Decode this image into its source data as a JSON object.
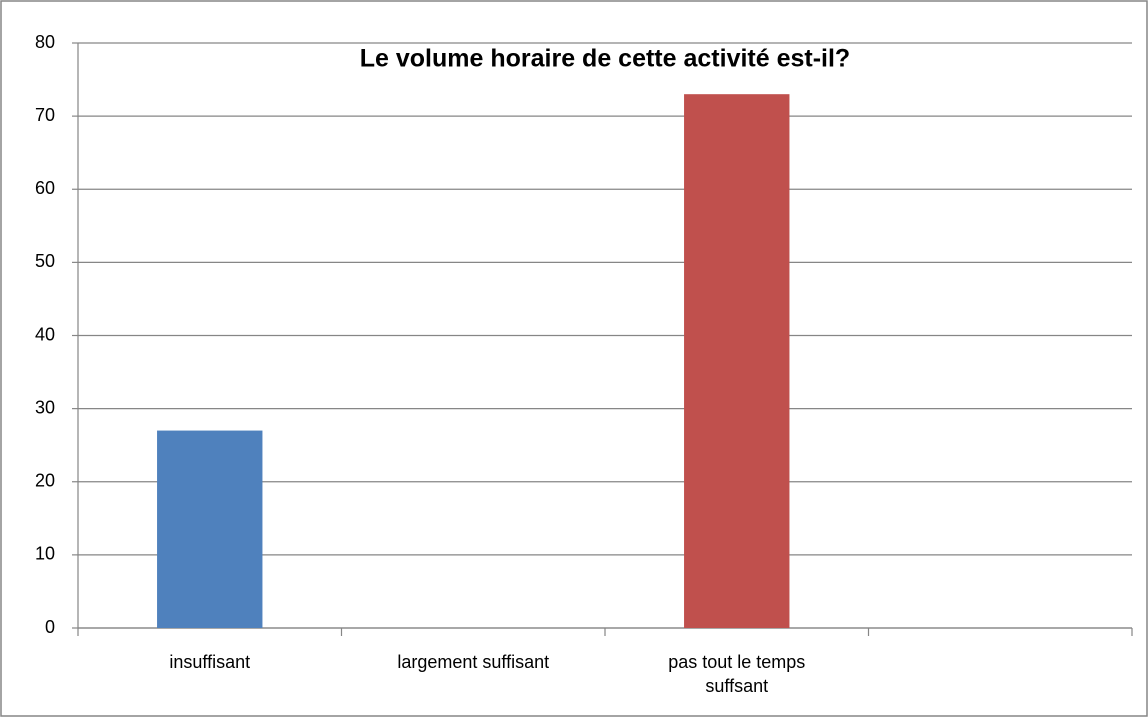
{
  "chart_data": {
    "type": "bar",
    "title": "Le volume horaire de cette activité est-il?",
    "categories": [
      "insuffisant",
      "largement suffisant",
      "pas tout le temps suffsant",
      null
    ],
    "values": [
      27,
      0,
      73,
      null
    ],
    "colors": [
      "#4f81bd",
      "#4f81bd",
      "#c0504d",
      "#4f81bd"
    ],
    "ylim": [
      0,
      80
    ],
    "yticks": [
      0,
      10,
      20,
      30,
      40,
      50,
      60,
      70,
      80
    ],
    "grid": true
  }
}
